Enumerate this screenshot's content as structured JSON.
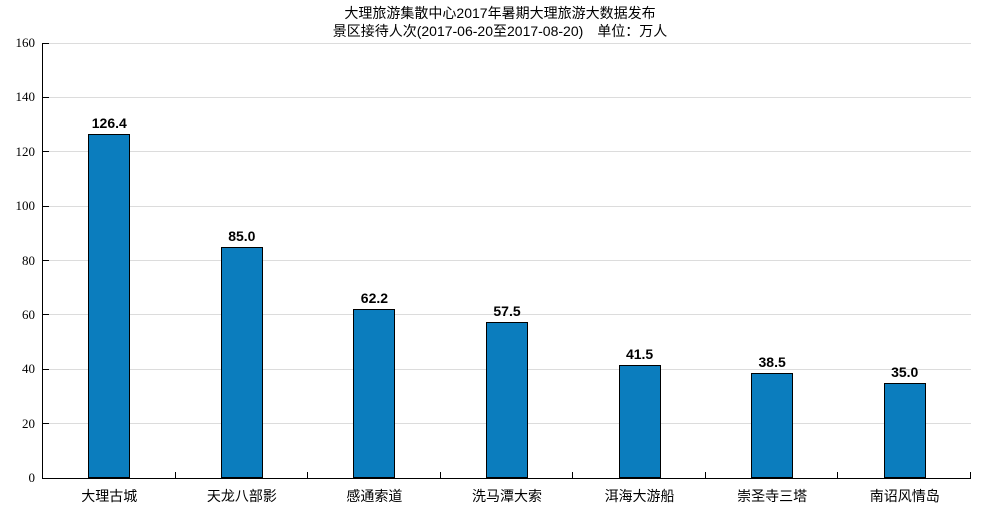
{
  "title": {
    "line1": "大理旅游集散中心2017年暑期大理旅游大数据发布",
    "line2": "景区接待人次(2017-06-20至2017-08-20)　单位：万人"
  },
  "chart_data": {
    "type": "bar",
    "title": "大理旅游集散中心2017年暑期大理旅游大数据发布",
    "subtitle": "景区接待人次(2017-06-20至2017-08-20)　单位：万人",
    "categories": [
      "大理古城",
      "天龙八部影",
      "感通索道",
      "洗马潭大索",
      "洱海大游船",
      "崇圣寺三塔",
      "南诏风情岛"
    ],
    "values": [
      126.4,
      85.0,
      62.2,
      57.5,
      41.5,
      38.5,
      35.0
    ],
    "value_labels": [
      "126.4",
      "85.0",
      "62.2",
      "57.5",
      "41.5",
      "38.5",
      "35.0"
    ],
    "ylabel": "",
    "xlabel": "",
    "ylim": [
      0,
      160
    ],
    "ytick_step": 20,
    "ytick_labels": [
      "0",
      "20",
      "40",
      "60",
      "80",
      "100",
      "120",
      "140",
      "160"
    ],
    "grid": "horizontal",
    "legend": "none",
    "bar_color": "#0b7dbe",
    "bar_edge_color": "#000000",
    "grid_color": "#dcdcdc",
    "axis_color": "#000000"
  }
}
